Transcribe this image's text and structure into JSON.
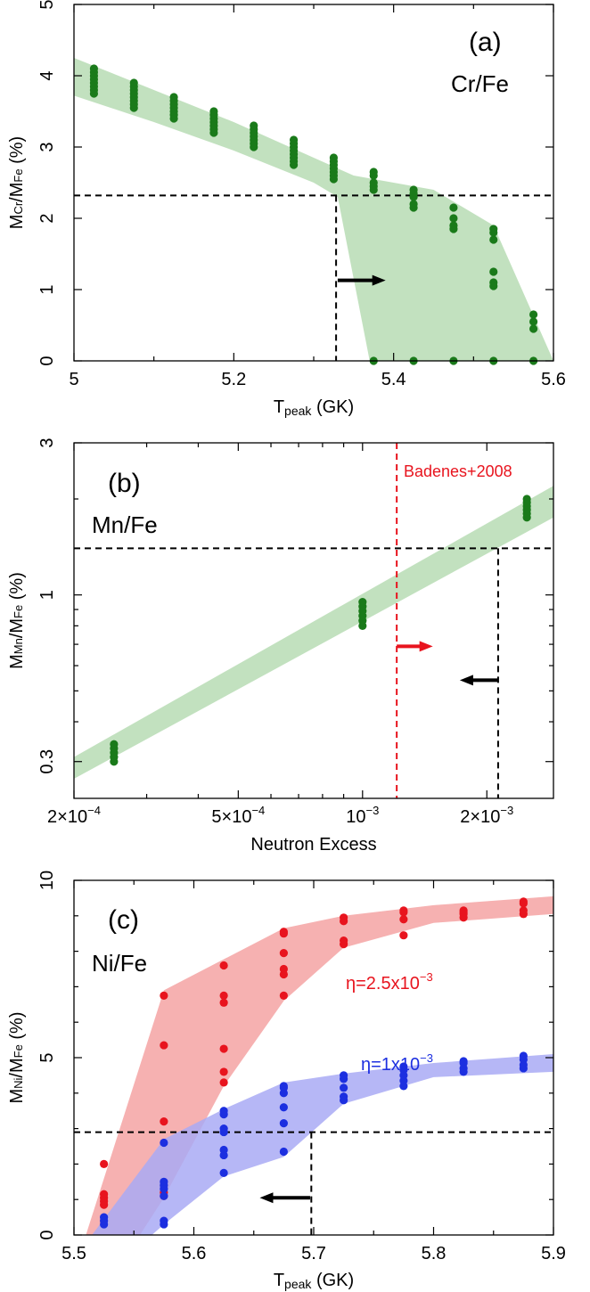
{
  "chart_data": [
    {
      "type": "scatter",
      "panel": "(a)",
      "species": "Cr/Fe",
      "xlabel": "T",
      "xlabel_sub": "peak",
      "xlabel_unit": " (GK)",
      "ylabel": "M",
      "ylabel_sub1": "Cr",
      "ylabel_mid": "/M",
      "ylabel_sub2": "Fe",
      "ylabel_unit": " (%)",
      "xlim": [
        5.0,
        5.6
      ],
      "ylim": [
        0,
        5
      ],
      "xticks": [
        5.0,
        5.2,
        5.4,
        5.6
      ],
      "xtick_labels": [
        "5",
        "5.2",
        "5.4",
        "5.6"
      ],
      "xticks_minor": [
        5.1,
        5.3,
        5.5
      ],
      "yticks": [
        0,
        1,
        2,
        3,
        4,
        5
      ],
      "ytick_labels": [
        "0",
        "1",
        "2",
        "3",
        "4",
        "5"
      ],
      "points_color": "#1a7a1a",
      "band_color": "#b7dcb4",
      "band": [
        [
          5.0,
          4.25
        ],
        [
          5.1,
          3.8
        ],
        [
          5.2,
          3.35
        ],
        [
          5.3,
          2.85
        ],
        [
          5.35,
          2.6
        ],
        [
          5.45,
          2.4
        ],
        [
          5.525,
          1.9
        ],
        [
          5.6,
          0.0
        ],
        [
          5.37,
          0.0
        ],
        [
          5.33,
          2.3
        ],
        [
          5.3,
          2.5
        ],
        [
          5.2,
          2.95
        ],
        [
          5.1,
          3.35
        ],
        [
          5.0,
          3.72
        ]
      ],
      "points": [
        {
          "x": 5.025,
          "y": [
            3.75,
            3.8,
            3.85,
            3.9,
            3.95,
            4.0,
            4.05,
            4.1
          ]
        },
        {
          "x": 5.075,
          "y": [
            3.55,
            3.6,
            3.65,
            3.7,
            3.75,
            3.8,
            3.85,
            3.9
          ]
        },
        {
          "x": 5.125,
          "y": [
            3.4,
            3.45,
            3.5,
            3.55,
            3.6,
            3.65,
            3.7
          ]
        },
        {
          "x": 5.175,
          "y": [
            3.2,
            3.25,
            3.3,
            3.35,
            3.4,
            3.45,
            3.5
          ]
        },
        {
          "x": 5.225,
          "y": [
            3.0,
            3.05,
            3.1,
            3.15,
            3.2,
            3.25,
            3.3
          ]
        },
        {
          "x": 5.275,
          "y": [
            2.75,
            2.8,
            2.85,
            2.9,
            2.95,
            3.0,
            3.05,
            3.1
          ]
        },
        {
          "x": 5.325,
          "y": [
            2.55,
            2.6,
            2.65,
            2.7,
            2.75,
            2.8,
            2.85
          ]
        },
        {
          "x": 5.375,
          "y": [
            2.4,
            2.45,
            2.5,
            2.6,
            2.65,
            0.0
          ]
        },
        {
          "x": 5.425,
          "y": [
            2.15,
            2.2,
            2.3,
            2.35,
            2.4,
            0.0
          ]
        },
        {
          "x": 5.475,
          "y": [
            1.85,
            1.9,
            2.0,
            2.15,
            0.0
          ]
        },
        {
          "x": 5.525,
          "y": [
            1.7,
            1.8,
            1.85,
            1.25,
            1.1,
            1.05,
            0.0
          ]
        },
        {
          "x": 5.575,
          "y": [
            0.45,
            0.55,
            0.65,
            0.0
          ]
        }
      ],
      "hline": 2.32,
      "vline": 5.328,
      "arrow": {
        "x0": 5.33,
        "x1": 5.39,
        "y": 1.13,
        "color": "#000000"
      }
    },
    {
      "type": "scatter",
      "panel": "(b)",
      "species": "Mn/Fe",
      "xlabel": "Neutron Excess",
      "ylabel": "M",
      "ylabel_sub1": "Mn",
      "ylabel_mid": "/M",
      "ylabel_sub2": "Fe",
      "ylabel_unit": " (%)",
      "xscale": "log",
      "yscale": "log",
      "xlim": [
        0.0002,
        0.0029
      ],
      "ylim": [
        0.23,
        3.0
      ],
      "xtick_labels": [
        {
          "value": 0.0002,
          "mant": "2×10",
          "exp": "−4"
        },
        {
          "value": 0.0005,
          "mant": "5×10",
          "exp": "−4"
        },
        {
          "value": 0.001,
          "mant": "10",
          "exp": "−3"
        },
        {
          "value": 0.002,
          "mant": "2×10",
          "exp": "−3"
        }
      ],
      "xticks_minor": [
        0.0003,
        0.0004,
        0.0006,
        0.0007,
        0.0008,
        0.0009
      ],
      "ytick_labels": [
        {
          "value": 0.3,
          "label": "0.3"
        },
        {
          "value": 1.0,
          "label": "1"
        },
        {
          "value": 3.0,
          "label": "3"
        }
      ],
      "points_color": "#1a7a1a",
      "band_color": "#b7dcb4",
      "band": [
        [
          0.0002,
          0.265
        ],
        [
          0.0029,
          1.75
        ],
        [
          0.0029,
          2.2
        ],
        [
          0.0002,
          0.31
        ]
      ],
      "points": [
        {
          "x": 0.00025,
          "y": [
            0.3,
            0.31,
            0.32,
            0.33,
            0.34
          ]
        },
        {
          "x": 0.001,
          "y": [
            0.8,
            0.83,
            0.86,
            0.89,
            0.92,
            0.95
          ]
        },
        {
          "x": 0.0025,
          "y": [
            1.75,
            1.8,
            1.85,
            1.9,
            1.95,
            2.0
          ]
        }
      ],
      "hline": 1.4,
      "vline": 0.00213,
      "ref_vline": 0.00121,
      "ref_label": "Badenes+2008",
      "ref_color": "#e8141e",
      "red_arrow": {
        "x0": 0.00121,
        "x1": 0.00148,
        "y": 0.69
      },
      "black_arrow": {
        "x0": 0.00213,
        "x1": 0.00172,
        "y": 0.54
      }
    },
    {
      "type": "scatter",
      "panel": "(c)",
      "species": "Ni/Fe",
      "xlabel": "T",
      "xlabel_sub": "peak",
      "xlabel_unit": " (GK)",
      "ylabel": "M",
      "ylabel_sub1": "Ni",
      "ylabel_mid": "/M",
      "ylabel_sub2": "Fe",
      "ylabel_unit": " (%)",
      "xlim": [
        5.5,
        5.9
      ],
      "ylim": [
        0,
        10
      ],
      "xticks": [
        5.5,
        5.6,
        5.7,
        5.8,
        5.9
      ],
      "xtick_labels": [
        "5.5",
        "5.6",
        "5.7",
        "5.8",
        "5.9"
      ],
      "xticks_minor": [
        5.55,
        5.65,
        5.75,
        5.85
      ],
      "yticks": [
        0,
        5,
        10
      ],
      "ytick_labels": [
        "0",
        "5",
        "10"
      ],
      "yticks_minor": [
        1,
        2,
        3,
        4,
        6,
        7,
        8,
        9
      ],
      "series": [
        {
          "label_base": "η=2.5x10",
          "label_exp": "−3",
          "color": "#e8141e",
          "band_color": "#f4a3a3",
          "band": [
            [
              5.51,
              0.0
            ],
            [
              5.575,
              6.9
            ],
            [
              5.675,
              8.65
            ],
            [
              5.725,
              9.0
            ],
            [
              5.8,
              9.3
            ],
            [
              5.9,
              9.55
            ],
            [
              5.9,
              9.05
            ],
            [
              5.8,
              8.8
            ],
            [
              5.725,
              8.1
            ],
            [
              5.675,
              6.6
            ],
            [
              5.625,
              4.2
            ],
            [
              5.575,
              1.05
            ],
            [
              5.555,
              0.0
            ]
          ],
          "points": [
            {
              "x": 5.525,
              "y": [
                0.85,
                0.95,
                1.05,
                1.15,
                2.0
              ]
            },
            {
              "x": 5.575,
              "y": [
                1.1,
                1.2,
                3.2,
                5.35,
                6.75
              ]
            },
            {
              "x": 5.625,
              "y": [
                4.3,
                4.6,
                5.25,
                6.55,
                6.75,
                7.6
              ]
            },
            {
              "x": 5.675,
              "y": [
                6.75,
                7.35,
                7.5,
                7.95,
                8.5,
                8.55
              ]
            },
            {
              "x": 5.725,
              "y": [
                8.2,
                8.3,
                8.85,
                8.95
              ]
            },
            {
              "x": 5.775,
              "y": [
                8.45,
                8.9,
                9.1,
                9.15
              ]
            },
            {
              "x": 5.825,
              "y": [
                8.95,
                9.05,
                9.1,
                9.15
              ]
            },
            {
              "x": 5.875,
              "y": [
                9.05,
                9.15,
                9.35,
                9.4
              ]
            }
          ]
        },
        {
          "label_base": "η=1x10",
          "label_exp": "−3",
          "color": "#1c2fe0",
          "band_color": "#a9aaf4",
          "band": [
            [
              5.515,
              0.0
            ],
            [
              5.575,
              2.7
            ],
            [
              5.625,
              3.55
            ],
            [
              5.675,
              4.3
            ],
            [
              5.725,
              4.55
            ],
            [
              5.8,
              4.85
            ],
            [
              5.9,
              5.1
            ],
            [
              5.9,
              4.6
            ],
            [
              5.8,
              4.45
            ],
            [
              5.725,
              3.7
            ],
            [
              5.675,
              2.2
            ],
            [
              5.625,
              1.65
            ],
            [
              5.575,
              0.3
            ],
            [
              5.565,
              0.0
            ]
          ],
          "points": [
            {
              "x": 5.525,
              "y": [
                0.3,
                0.4,
                0.5
              ]
            },
            {
              "x": 5.575,
              "y": [
                0.3,
                0.4,
                1.1,
                1.3,
                1.4,
                1.5,
                2.6
              ]
            },
            {
              "x": 5.625,
              "y": [
                1.75,
                2.25,
                2.4,
                2.9,
                3.0,
                3.4,
                3.5
              ]
            },
            {
              "x": 5.675,
              "y": [
                2.35,
                3.15,
                3.6,
                4.0,
                4.15,
                4.2
              ]
            },
            {
              "x": 5.725,
              "y": [
                3.8,
                3.9,
                4.15,
                4.4,
                4.5
              ]
            },
            {
              "x": 5.775,
              "y": [
                4.2,
                4.35,
                4.5,
                4.65,
                4.75
              ]
            },
            {
              "x": 5.825,
              "y": [
                4.6,
                4.7,
                4.85,
                4.9
              ]
            },
            {
              "x": 5.875,
              "y": [
                4.7,
                4.8,
                4.95,
                5.05
              ]
            }
          ]
        }
      ],
      "hline": 2.9,
      "vline": 5.698,
      "arrow": {
        "x0": 5.697,
        "x1": 5.655,
        "y": 1.05,
        "color": "#000000"
      }
    }
  ]
}
